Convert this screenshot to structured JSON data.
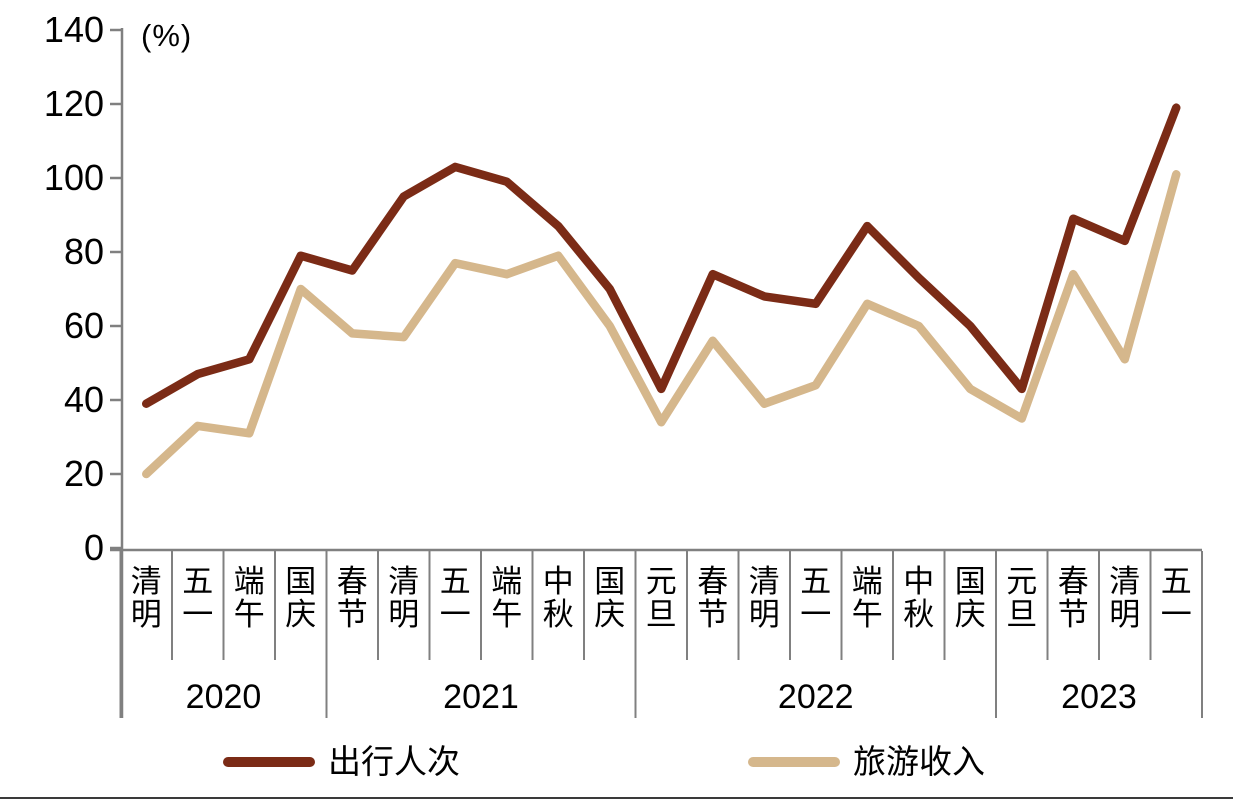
{
  "chart_data": {
    "type": "line",
    "unit_label": "(%)",
    "categories": [
      "清明",
      "五一",
      "端午",
      "国庆",
      "春节",
      "清明",
      "五一",
      "端午",
      "中秋",
      "国庆",
      "元旦",
      "春节",
      "清明",
      "五一",
      "端午",
      "中秋",
      "国庆",
      "元旦",
      "春节",
      "清明",
      "五一"
    ],
    "year_groups": [
      {
        "label": "2020",
        "count": 4
      },
      {
        "label": "2021",
        "count": 6
      },
      {
        "label": "2022",
        "count": 7
      },
      {
        "label": "2023",
        "count": 4
      }
    ],
    "series": [
      {
        "name": "出行人次",
        "color": "#7B2B16",
        "values": [
          39,
          47,
          51,
          79,
          75,
          95,
          103,
          99,
          87,
          70,
          43,
          74,
          68,
          66,
          87,
          73,
          60,
          43,
          89,
          83,
          119
        ]
      },
      {
        "name": "旅游收入",
        "color": "#D5B78C",
        "values": [
          20,
          33,
          31,
          70,
          58,
          57,
          77,
          74,
          79,
          60,
          34,
          56,
          39,
          44,
          66,
          60,
          43,
          35,
          74,
          51,
          101
        ]
      }
    ],
    "y_axis": {
      "min": 0,
      "max": 140,
      "step": 20,
      "tick_labels": [
        "0",
        "20",
        "40",
        "60",
        "80",
        "100",
        "120",
        "140"
      ]
    },
    "colors": {
      "axis": "#808080",
      "text": "#000000",
      "bottom_rule": "#3A3A3A"
    },
    "legend_position": "bottom",
    "grid": "off"
  }
}
